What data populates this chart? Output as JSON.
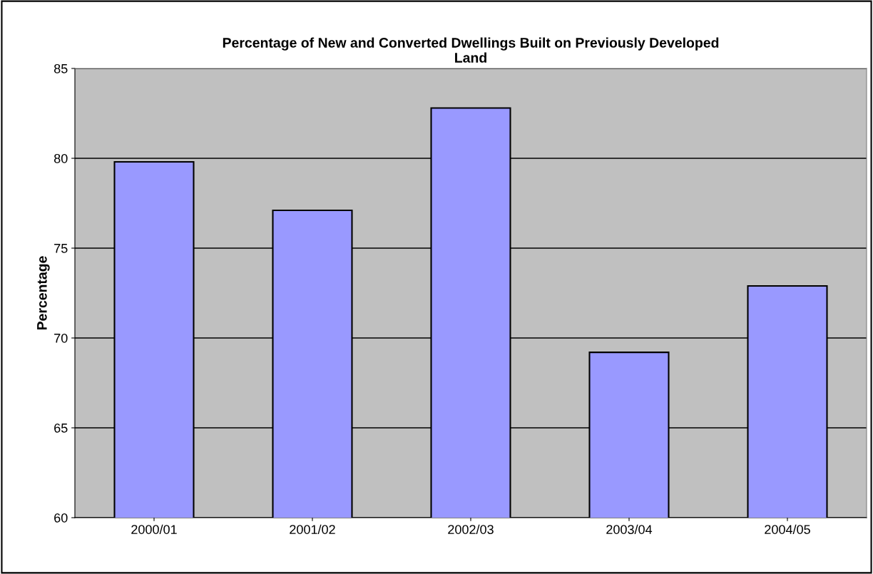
{
  "chart_data": {
    "type": "bar",
    "title": "Percentage of New and Converted Dwellings Built on Previously Developed\nLand",
    "ylabel": "Percentage",
    "categories": [
      "2000/01",
      "2001/02",
      "2002/03",
      "2003/04",
      "2004/05"
    ],
    "values": [
      79.8,
      77.1,
      82.8,
      69.2,
      72.9
    ],
    "color": "#9999ff",
    "ylim": [
      60,
      85
    ],
    "yticks": [
      60,
      65,
      70,
      75,
      80,
      85
    ],
    "grid": "y"
  }
}
